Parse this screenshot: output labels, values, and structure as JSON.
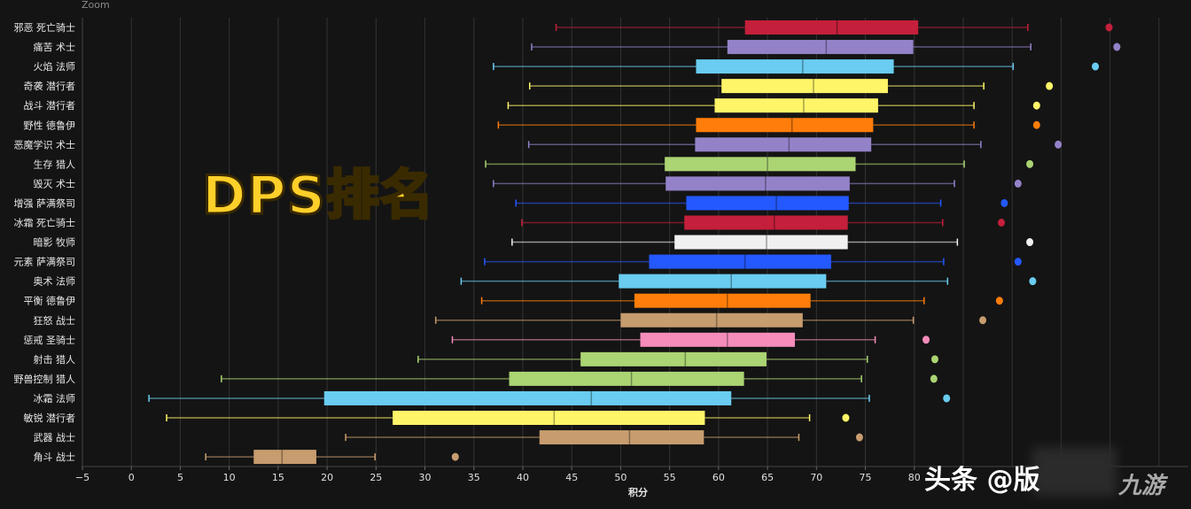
{
  "zoom_label": "Zoom",
  "overlay_title": "DPS排名",
  "watermark": {
    "toutiao": "头条 @版",
    "jiuyou": "九游"
  },
  "chart_data": {
    "type": "boxplot",
    "orientation": "horizontal",
    "title": "",
    "xlabel": "积分",
    "ylabel": "",
    "xlim": [
      -5,
      108
    ],
    "xticks": [
      -5,
      0,
      5,
      10,
      15,
      20,
      25,
      30,
      35,
      40,
      45,
      50,
      55,
      60,
      65,
      70,
      75,
      80
    ],
    "grid": true,
    "series": [
      {
        "category": "邪恶 死亡骑士",
        "color": "#c41f3b",
        "min": 43.4,
        "q1": 62.7,
        "median": 72.1,
        "q3": 80.4,
        "max": 91.6,
        "outliers": [
          99.9
        ]
      },
      {
        "category": "痛苦 术士",
        "color": "#9482c9",
        "min": 40.9,
        "q1": 60.9,
        "median": 71.0,
        "q3": 79.9,
        "max": 91.9,
        "outliers": [
          100.7
        ]
      },
      {
        "category": "火焰 法师",
        "color": "#69ccf0",
        "min": 37.0,
        "q1": 57.7,
        "median": 68.6,
        "q3": 77.9,
        "max": 90.1,
        "outliers": [
          98.5
        ]
      },
      {
        "category": "奇袭 潜行者",
        "color": "#fff569",
        "min": 40.7,
        "q1": 60.3,
        "median": 69.7,
        "q3": 77.3,
        "max": 87.1,
        "outliers": [
          93.8
        ]
      },
      {
        "category": "战斗 潜行者",
        "color": "#fff569",
        "min": 38.5,
        "q1": 59.6,
        "median": 68.7,
        "q3": 76.3,
        "max": 86.1,
        "outliers": [
          92.5
        ]
      },
      {
        "category": "野性 德鲁伊",
        "color": "#ff7d0a",
        "min": 37.5,
        "q1": 57.7,
        "median": 67.5,
        "q3": 75.8,
        "max": 86.1,
        "outliers": [
          92.5
        ]
      },
      {
        "category": "恶魔学识 术士",
        "color": "#9482c9",
        "min": 40.6,
        "q1": 57.6,
        "median": 67.2,
        "q3": 75.6,
        "max": 86.8,
        "outliers": [
          94.7
        ]
      },
      {
        "category": "生存 猎人",
        "color": "#abd473",
        "min": 36.2,
        "q1": 54.5,
        "median": 65.0,
        "q3": 74.0,
        "max": 85.1,
        "outliers": [
          91.8
        ]
      },
      {
        "category": "毁灭 术士",
        "color": "#9482c9",
        "min": 37.0,
        "q1": 54.6,
        "median": 64.8,
        "q3": 73.4,
        "max": 84.1,
        "outliers": [
          90.6
        ]
      },
      {
        "category": "增强 萨满祭司",
        "color": "#2459ff",
        "min": 39.3,
        "q1": 56.7,
        "median": 65.9,
        "q3": 73.3,
        "max": 82.7,
        "outliers": [
          89.2
        ]
      },
      {
        "category": "冰霜 死亡骑士",
        "color": "#c41f3b",
        "min": 39.9,
        "q1": 56.5,
        "median": 65.7,
        "q3": 73.2,
        "max": 82.9,
        "outliers": [
          88.9
        ]
      },
      {
        "category": "暗影 牧师",
        "color": "#f0f0f0",
        "min": 38.9,
        "q1": 55.5,
        "median": 64.9,
        "q3": 73.2,
        "max": 84.4,
        "outliers": [
          91.8
        ]
      },
      {
        "category": "元素 萨满祭司",
        "color": "#2459ff",
        "min": 36.1,
        "q1": 52.9,
        "median": 62.7,
        "q3": 71.5,
        "max": 83.0,
        "outliers": [
          90.6
        ]
      },
      {
        "category": "奥术 法师",
        "color": "#69ccf0",
        "min": 33.7,
        "q1": 49.8,
        "median": 61.3,
        "q3": 71.0,
        "max": 83.4,
        "outliers": [
          92.1
        ]
      },
      {
        "category": "平衡 德鲁伊",
        "color": "#ff7d0a",
        "min": 35.8,
        "q1": 51.4,
        "median": 60.9,
        "q3": 69.4,
        "max": 81.0,
        "outliers": [
          88.7
        ]
      },
      {
        "category": "狂怒 战士",
        "color": "#c79c6e",
        "min": 31.1,
        "q1": 50.0,
        "median": 59.8,
        "q3": 68.6,
        "max": 79.9,
        "outliers": [
          87.0
        ]
      },
      {
        "category": "惩戒 圣骑士",
        "color": "#f58cba",
        "min": 32.8,
        "q1": 52.0,
        "median": 60.9,
        "q3": 67.8,
        "max": 76.0,
        "outliers": [
          81.2
        ]
      },
      {
        "category": "射击 猎人",
        "color": "#abd473",
        "min": 29.3,
        "q1": 45.9,
        "median": 56.6,
        "q3": 64.9,
        "max": 75.2,
        "outliers": [
          82.1
        ]
      },
      {
        "category": "野兽控制 猎人",
        "color": "#abd473",
        "min": 9.2,
        "q1": 38.6,
        "median": 51.1,
        "q3": 62.6,
        "max": 74.6,
        "outliers": [
          82.0
        ]
      },
      {
        "category": "冰霜 法师",
        "color": "#69ccf0",
        "min": 1.8,
        "q1": 19.7,
        "median": 47.0,
        "q3": 61.3,
        "max": 75.4,
        "outliers": [
          83.3
        ]
      },
      {
        "category": "敏锐 潜行者",
        "color": "#fff569",
        "min": 3.6,
        "q1": 26.7,
        "median": 43.2,
        "q3": 58.6,
        "max": 69.3,
        "outliers": [
          73.0
        ]
      },
      {
        "category": "武器 战士",
        "color": "#c79c6e",
        "min": 21.9,
        "q1": 41.7,
        "median": 50.9,
        "q3": 58.5,
        "max": 68.2,
        "outliers": [
          74.4
        ]
      },
      {
        "category": "角斗 战士",
        "color": "#c79c6e",
        "min": 7.6,
        "q1": 12.5,
        "median": 15.4,
        "q3": 18.9,
        "max": 24.9,
        "outliers": [
          33.1
        ]
      }
    ]
  }
}
